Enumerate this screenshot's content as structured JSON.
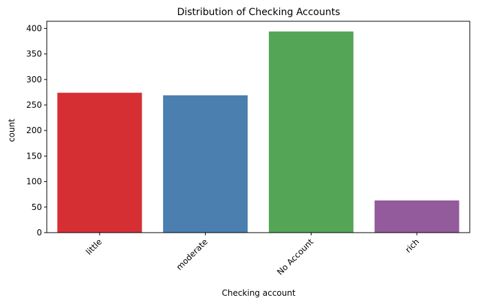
{
  "chart_data": {
    "type": "bar",
    "title": "Distribution of Checking Accounts",
    "xlabel": "Checking account",
    "ylabel": "count",
    "categories": [
      "little",
      "moderate",
      "No Account",
      "rich"
    ],
    "values": [
      274,
      269,
      394,
      63
    ],
    "colors": [
      "#d62f33",
      "#4a7fb0",
      "#55a557",
      "#935a9c"
    ],
    "ylim": [
      0,
      414
    ],
    "yticks": [
      0,
      50,
      100,
      150,
      200,
      250,
      300,
      350,
      400
    ],
    "grid": false,
    "legend": "none",
    "xtick_rotation": -45
  }
}
